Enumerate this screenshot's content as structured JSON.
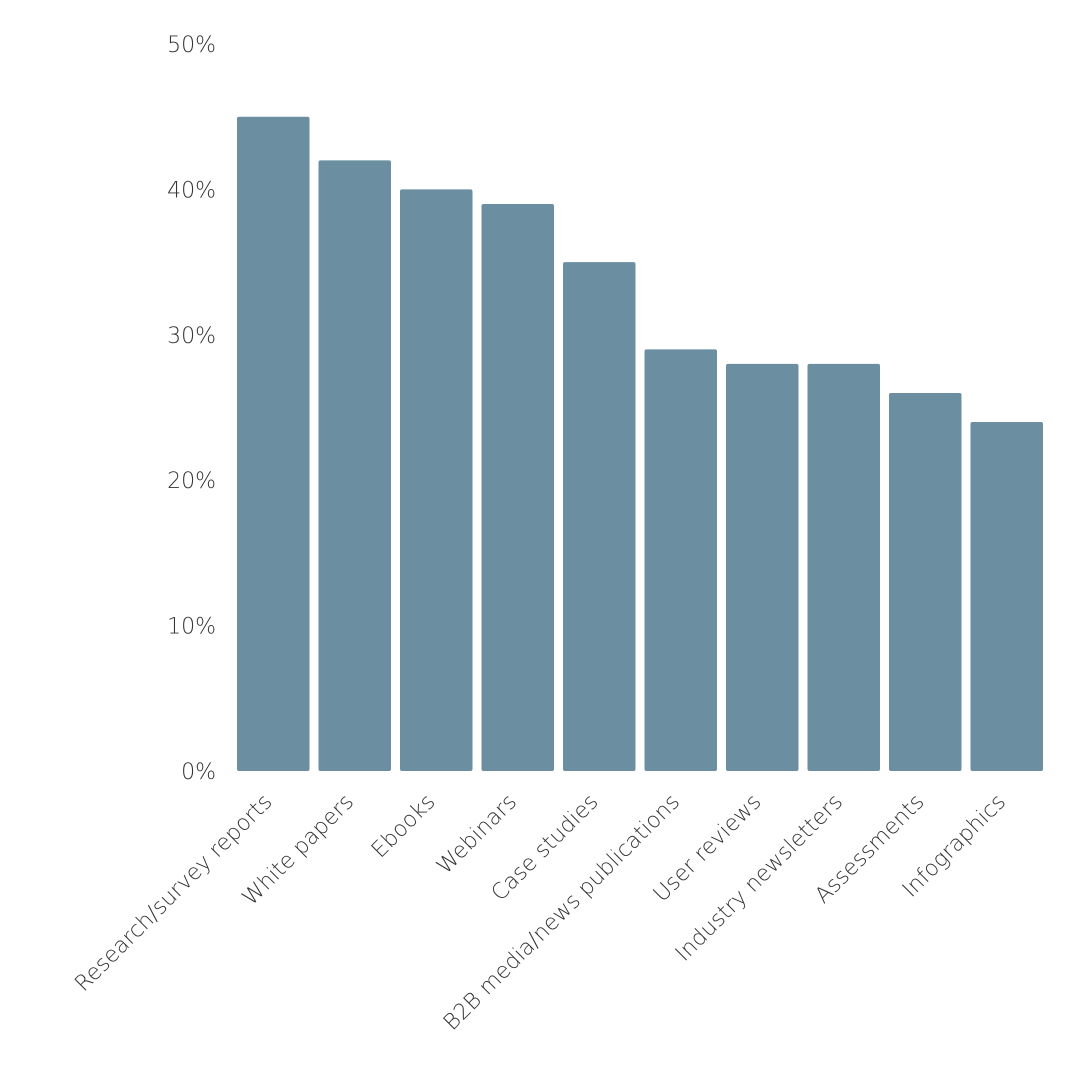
{
  "colors": {
    "bar": "#6b8fa1",
    "text": "#333333",
    "background": "#ffffff"
  },
  "chart_data": {
    "type": "bar",
    "title": "",
    "xlabel": "",
    "ylabel": "",
    "ylim": [
      0,
      50
    ],
    "yticks": [
      "0%",
      "10%",
      "20%",
      "30%",
      "40%",
      "50%"
    ],
    "y_tick_values": [
      0,
      10,
      20,
      30,
      40,
      50
    ],
    "grid": false,
    "legend": "none",
    "categories": [
      "Research/survey reports",
      "White papers",
      "Ebooks",
      "Webinars",
      "Case studies",
      "B2B media/news publications",
      "User reviews",
      "Industry newsletters",
      "Assessments",
      "Infographics"
    ],
    "values": [
      45,
      42,
      40,
      39,
      35,
      29,
      28,
      28,
      26,
      24
    ],
    "value_unit": "%"
  }
}
